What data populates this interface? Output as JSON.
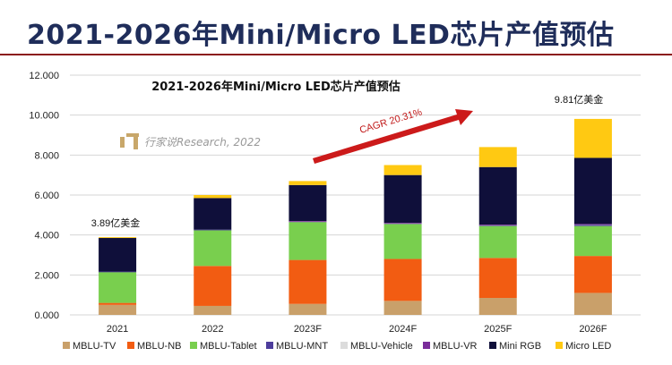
{
  "page_title": "2021-2026年Mini/Micro LED芯片产值预估",
  "watermark": {
    "text": "行家说Research, 2022"
  },
  "annotations": {
    "cagr": "CAGR 20.31%",
    "first_total": "3.89亿美金",
    "last_total": "9.81亿美金"
  },
  "colors": {
    "MBLU-TV": "#c9a06a",
    "MBLU-NB": "#f25c12",
    "MBLU-Tablet": "#79cf4e",
    "MBLU-MNT": "#4d3d9c",
    "MBLU-Vehicle": "#dcdcdc",
    "MBLU-VR": "#7a2d9a",
    "Mini RGB": "#0f0f3a",
    "Micro LED": "#ffc912",
    "arrow": "#cc1a1a",
    "grid": "#d6d6d6",
    "title": "#1f2d5a"
  },
  "chart_data": {
    "type": "bar",
    "stacked": true,
    "title": "2021-2026年Mini/Micro LED芯片产值预估",
    "categories": [
      "2021",
      "2022",
      "2023F",
      "2024F",
      "2025F",
      "2026F"
    ],
    "ylim": [
      0,
      12
    ],
    "yticks": [
      "0.000",
      "2.000",
      "4.000",
      "6.000",
      "8.000",
      "10.000",
      "12.000"
    ],
    "grid": true,
    "legend_position": "bottom",
    "series": [
      {
        "name": "MBLU-TV",
        "values": [
          0.5,
          0.45,
          0.55,
          0.7,
          0.85,
          1.1
        ]
      },
      {
        "name": "MBLU-NB",
        "values": [
          0.1,
          2.0,
          2.2,
          2.1,
          2.0,
          1.85
        ]
      },
      {
        "name": "MBLU-Tablet",
        "values": [
          1.55,
          1.8,
          1.9,
          1.75,
          1.6,
          1.5
        ]
      },
      {
        "name": "MBLU-MNT",
        "values": [
          0.02,
          0.02,
          0.03,
          0.04,
          0.05,
          0.07
        ]
      },
      {
        "name": "MBLU-Vehicle",
        "values": [
          0.0,
          0.0,
          0.01,
          0.01,
          0.01,
          0.02
        ]
      },
      {
        "name": "MBLU-VR",
        "values": [
          0.0,
          0.0,
          0.01,
          0.01,
          0.01,
          0.01
        ]
      },
      {
        "name": "Mini RGB",
        "values": [
          1.68,
          1.58,
          1.8,
          2.39,
          2.88,
          3.31
        ]
      },
      {
        "name": "Micro LED",
        "values": [
          0.04,
          0.15,
          0.2,
          0.5,
          1.0,
          1.95
        ]
      }
    ]
  }
}
